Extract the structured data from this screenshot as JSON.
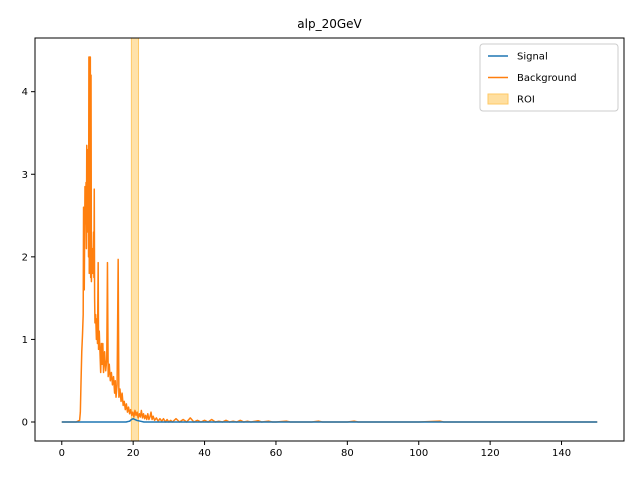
{
  "chart_data": {
    "type": "line",
    "title": "alp_20GeV",
    "xlabel": "",
    "ylabel": "",
    "xlim": [
      -7.5,
      157.5
    ],
    "ylim": [
      -0.23,
      4.65
    ],
    "xticks": [
      0,
      20,
      40,
      60,
      80,
      100,
      120,
      140
    ],
    "yticks": [
      0,
      1,
      2,
      3,
      4
    ],
    "grid": false,
    "legend_position": "top-right",
    "roi": {
      "name": "ROI",
      "x_start": 19.5,
      "x_end": 21.5,
      "color": "#ffdfa0",
      "edge_color": "#ffc966"
    },
    "series": [
      {
        "name": "Signal",
        "color": "#1f77b4",
        "points": [
          [
            0,
            0
          ],
          [
            5,
            0
          ],
          [
            10,
            0
          ],
          [
            15,
            0
          ],
          [
            18,
            0
          ],
          [
            19,
            0.01
          ],
          [
            19.5,
            0.03
          ],
          [
            20,
            0.04
          ],
          [
            20.5,
            0.03
          ],
          [
            21,
            0.02
          ],
          [
            22,
            0.01
          ],
          [
            23,
            0.0
          ],
          [
            25,
            0
          ],
          [
            30,
            0
          ],
          [
            50,
            0
          ],
          [
            100,
            0
          ],
          [
            150,
            0
          ]
        ]
      },
      {
        "name": "Background",
        "color": "#ff7f0e",
        "points": [
          [
            0,
            0
          ],
          [
            2,
            0
          ],
          [
            4,
            0
          ],
          [
            5,
            0.02
          ],
          [
            5.2,
            0.12
          ],
          [
            5.4,
            0.5
          ],
          [
            5.6,
            0.85
          ],
          [
            5.8,
            1.05
          ],
          [
            6.0,
            1.3
          ],
          [
            6.1,
            2.6
          ],
          [
            6.2,
            2.2
          ],
          [
            6.3,
            1.6
          ],
          [
            6.5,
            2.85
          ],
          [
            6.6,
            2.4
          ],
          [
            6.8,
            2.9
          ],
          [
            6.9,
            2.1
          ],
          [
            7.0,
            3.35
          ],
          [
            7.1,
            2.6
          ],
          [
            7.3,
            2.3
          ],
          [
            7.4,
            3.3
          ],
          [
            7.5,
            2.0
          ],
          [
            7.6,
            4.42
          ],
          [
            7.7,
            1.8
          ],
          [
            7.8,
            4.42
          ],
          [
            7.9,
            2.0
          ],
          [
            8.0,
            4.42
          ],
          [
            8.1,
            1.75
          ],
          [
            8.2,
            4.2
          ],
          [
            8.3,
            1.7
          ],
          [
            8.5,
            2.1
          ],
          [
            8.7,
            1.8
          ],
          [
            8.9,
            2.3
          ],
          [
            9.0,
            1.75
          ],
          [
            9.1,
            2.82
          ],
          [
            9.2,
            1.5
          ],
          [
            9.3,
            1.2
          ],
          [
            9.5,
            1.3
          ],
          [
            9.7,
            1.0
          ],
          [
            9.9,
            1.25
          ],
          [
            10.0,
            0.95
          ],
          [
            10.2,
            1.93
          ],
          [
            10.3,
            0.88
          ],
          [
            10.5,
            1.1
          ],
          [
            10.7,
            0.85
          ],
          [
            10.9,
            0.6
          ],
          [
            11.1,
            0.95
          ],
          [
            11.3,
            0.7
          ],
          [
            11.5,
            0.95
          ],
          [
            11.7,
            0.6
          ],
          [
            12.0,
            0.85
          ],
          [
            12.3,
            0.62
          ],
          [
            12.6,
            0.75
          ],
          [
            12.8,
            1.93
          ],
          [
            13.0,
            0.55
          ],
          [
            13.3,
            0.7
          ],
          [
            13.6,
            0.5
          ],
          [
            13.9,
            0.6
          ],
          [
            14.2,
            0.45
          ],
          [
            14.5,
            0.55
          ],
          [
            14.8,
            0.35
          ],
          [
            15.0,
            0.5
          ],
          [
            15.2,
            0.3
          ],
          [
            15.5,
            0.45
          ],
          [
            15.8,
            1.97
          ],
          [
            16.0,
            0.3
          ],
          [
            16.3,
            0.4
          ],
          [
            16.6,
            0.25
          ],
          [
            16.9,
            0.35
          ],
          [
            17.2,
            0.2
          ],
          [
            17.5,
            0.25
          ],
          [
            17.8,
            0.15
          ],
          [
            18.1,
            0.22
          ],
          [
            18.4,
            0.12
          ],
          [
            18.7,
            0.18
          ],
          [
            19.0,
            0.1
          ],
          [
            19.3,
            0.15
          ],
          [
            19.6,
            0.08
          ],
          [
            19.9,
            0.12
          ],
          [
            20.2,
            0.06
          ],
          [
            20.5,
            0.14
          ],
          [
            20.8,
            0.08
          ],
          [
            21.1,
            0.12
          ],
          [
            21.4,
            0.05
          ],
          [
            21.7,
            0.1
          ],
          [
            22.0,
            0.06
          ],
          [
            22.3,
            0.14
          ],
          [
            22.6,
            0.05
          ],
          [
            22.9,
            0.1
          ],
          [
            23.2,
            0.04
          ],
          [
            23.5,
            0.08
          ],
          [
            23.8,
            0.03
          ],
          [
            24.1,
            0.1
          ],
          [
            24.4,
            0.03
          ],
          [
            24.7,
            0.06
          ],
          [
            25.0,
            0.12
          ],
          [
            25.3,
            0.03
          ],
          [
            25.6,
            0.07
          ],
          [
            26.0,
            0.02
          ],
          [
            26.5,
            0.05
          ],
          [
            27,
            0.01
          ],
          [
            27.5,
            0.04
          ],
          [
            28,
            0.01
          ],
          [
            28.5,
            0.04
          ],
          [
            29,
            0.0
          ],
          [
            29.5,
            0.03
          ],
          [
            30,
            0.0
          ],
          [
            30.5,
            0.02
          ],
          [
            31,
            0.0
          ],
          [
            32,
            0.04
          ],
          [
            33,
            0.0
          ],
          [
            34,
            0.03
          ],
          [
            35,
            0.0
          ],
          [
            36,
            0.05
          ],
          [
            37,
            0.0
          ],
          [
            38,
            0.02
          ],
          [
            39,
            0.0
          ],
          [
            40,
            0.02
          ],
          [
            41,
            0.0
          ],
          [
            42,
            0.03
          ],
          [
            43,
            0.0
          ],
          [
            44,
            0.01
          ],
          [
            45,
            0.0
          ],
          [
            46,
            0.02
          ],
          [
            47,
            0.0
          ],
          [
            48,
            0.01
          ],
          [
            49,
            0.0
          ],
          [
            50,
            0.02
          ],
          [
            51,
            0.0
          ],
          [
            52,
            0.01
          ],
          [
            53,
            0.0
          ],
          [
            55,
            0.015
          ],
          [
            56,
            0.0
          ],
          [
            58,
            0.01
          ],
          [
            59,
            0.0
          ],
          [
            60,
            0
          ],
          [
            63,
            0.01
          ],
          [
            64,
            0
          ],
          [
            70,
            0
          ],
          [
            72,
            0.01
          ],
          [
            73,
            0
          ],
          [
            80,
            0
          ],
          [
            82,
            0.01
          ],
          [
            83,
            0
          ],
          [
            100,
            0
          ],
          [
            106,
            0.01
          ],
          [
            107,
            0
          ],
          [
            150,
            0
          ]
        ]
      }
    ]
  }
}
